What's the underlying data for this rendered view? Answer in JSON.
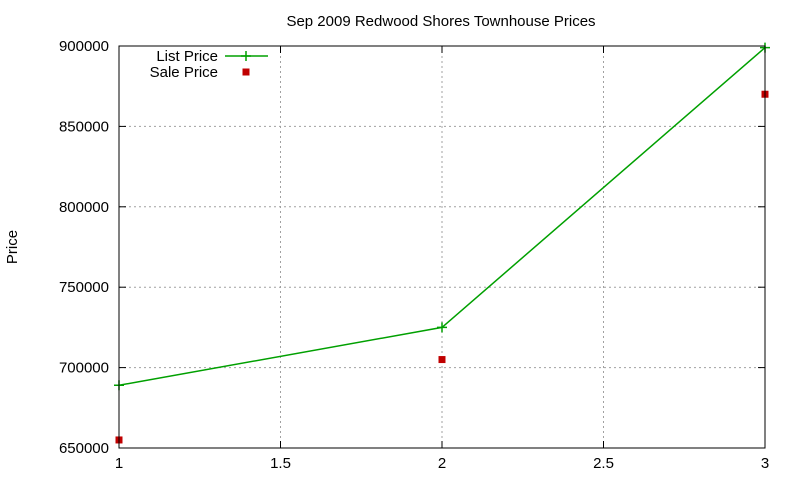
{
  "chart_data": {
    "type": "line",
    "title": "Sep 2009 Redwood Shores Townhouse Prices",
    "xlabel": "",
    "ylabel": "Price",
    "xlim": [
      1,
      3
    ],
    "ylim": [
      650000,
      900000
    ],
    "xticks": [
      1,
      1.5,
      2,
      2.5,
      3
    ],
    "xtick_labels": [
      "1",
      "1.5",
      "2",
      "2.5",
      "3"
    ],
    "yticks": [
      650000,
      700000,
      750000,
      800000,
      850000,
      900000
    ],
    "ytick_labels": [
      "650000",
      "700000",
      "750000",
      "800000",
      "850000",
      "900000"
    ],
    "grid": true,
    "legend_position": "top-left",
    "series": [
      {
        "name": "List Price",
        "style": "line-points",
        "marker": "plus",
        "color": "#00a000",
        "x": [
          1,
          2,
          3
        ],
        "y": [
          689000,
          725000,
          899000
        ]
      },
      {
        "name": "Sale Price",
        "style": "points",
        "marker": "square",
        "color": "#c00000",
        "x": [
          1,
          2,
          3
        ],
        "y": [
          655000,
          705000,
          870000
        ]
      }
    ]
  }
}
